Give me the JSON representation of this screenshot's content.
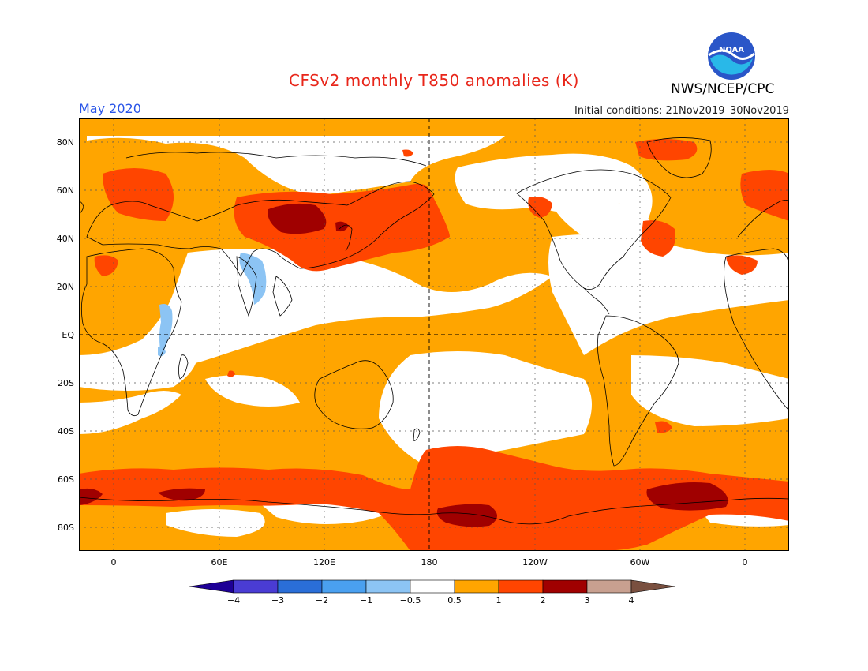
{
  "header": {
    "title": "CFSv2 monthly T850 anomalies (K)",
    "valid_month": "May 2020",
    "initial_conditions": "Initial conditions: 21Nov2019–30Nov2019",
    "agency": "NWS/NCEP/CPC",
    "logo_text": "NOAA"
  },
  "axes": {
    "y_ticks": [
      "80N",
      "60N",
      "40N",
      "20N",
      "EQ",
      "20S",
      "40S",
      "60S",
      "80S"
    ],
    "x_ticks": [
      "0",
      "60E",
      "120E",
      "180",
      "120W",
      "60W",
      "0"
    ]
  },
  "legend": {
    "labels": [
      "−4",
      "−3",
      "−2",
      "−1",
      "−0.5",
      "0.5",
      "1",
      "2",
      "3",
      "4"
    ],
    "colors": [
      "#1e0096",
      "#4a3cd4",
      "#2a6ed8",
      "#4aa0f0",
      "#8cc4f4",
      "#ffffff",
      "#ffa500",
      "#ff4500",
      "#a00000",
      "#c8a090",
      "#7a5040"
    ]
  },
  "colors": {
    "background_anomaly": "#ffa500",
    "neutral": "#ffffff",
    "warm": "#ff4500",
    "hot": "#a00000",
    "cool": "#8cc4f4"
  }
}
